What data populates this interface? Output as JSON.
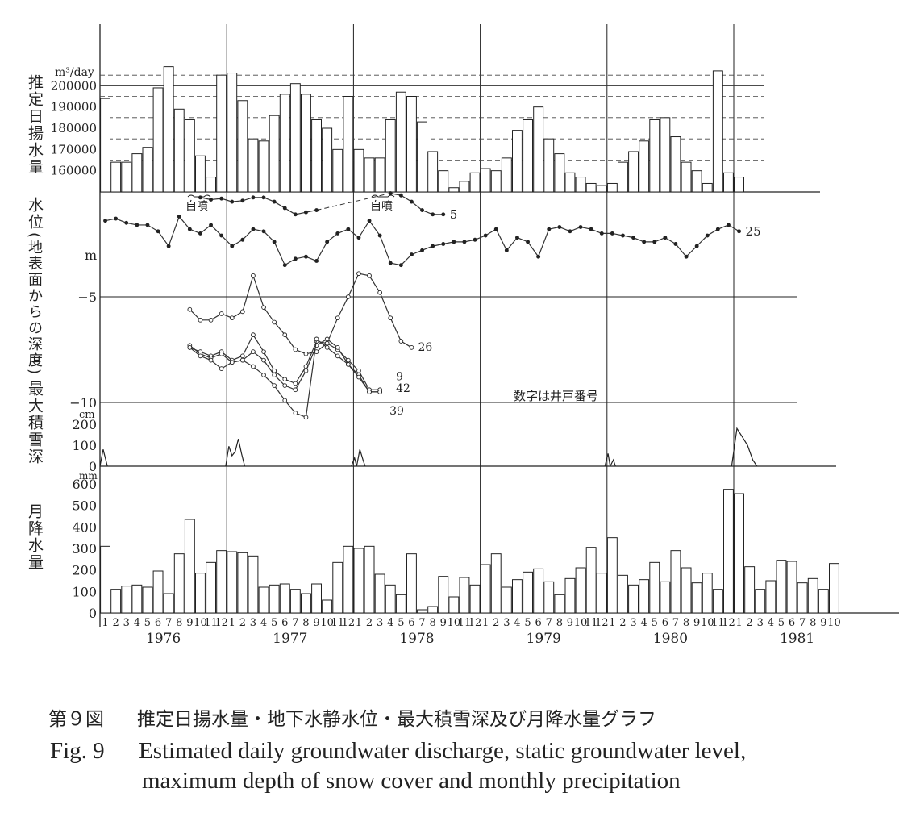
{
  "labels": {
    "discharge_label": "推定日揚水量",
    "discharge_unit": "m³/day",
    "level_label_top": "水位",
    "level_label_sub": "(地表面からの深度)",
    "level_unit": "m",
    "snow_label": "最大積雪深",
    "snow_unit": "cm",
    "precip_label": "月降水量",
    "precip_unit": "mm",
    "artesian_note": "自噴",
    "well_note": "数字は井戸番号"
  },
  "caption": {
    "jp_num": "第９図",
    "jp_text": "推定日揚水量・地下水静水位・最大積雪深及び月降水量グラフ",
    "en_num": "Fig. 9",
    "en_line1": "Estimated daily groundwater discharge, static groundwater level,",
    "en_line2": "maximum depth of snow cover and monthly precipitation"
  },
  "chart_data": [
    {
      "type": "bar",
      "title": "推定日揚水量",
      "ylabel": "m³/day",
      "ylim": [
        150000,
        210000
      ],
      "y_ticks": [
        160000,
        170000,
        180000,
        190000,
        200000
      ],
      "categories": "monthly, Jan 1976 – Mar 1981",
      "values": [
        194000,
        164000,
        164000,
        168000,
        171000,
        199000,
        209000,
        189000,
        184000,
        167000,
        157000,
        205000,
        206000,
        193000,
        175000,
        174000,
        186000,
        196000,
        201000,
        196000,
        184000,
        180000,
        170000,
        195000,
        170000,
        166000,
        166000,
        184000,
        197000,
        195000,
        183000,
        169000,
        160000,
        152000,
        155000,
        159000,
        161000,
        160000,
        166000,
        179000,
        184000,
        190000,
        175000,
        168000,
        159000,
        157000,
        154000,
        153000,
        154000,
        164000,
        169000,
        174000,
        184000,
        185000,
        176000,
        164000,
        160000,
        154000,
        207000,
        159000,
        157000
      ]
    },
    {
      "type": "line",
      "title": "水位",
      "ylabel": "m",
      "ylim": [
        -12,
        2
      ],
      "y_ticks": [
        -5,
        -10
      ],
      "series": [
        {
          "name": "5",
          "x_start": "1976-10",
          "values": [
            -0.3,
            -0.4,
            -0.35,
            -0.5,
            -0.45,
            -0.3,
            -0.3,
            -0.5,
            -0.8,
            -1.1,
            -1.0,
            -0.9,
            null,
            null,
            null,
            null,
            null,
            null,
            -0.1,
            -0.2,
            -0.5,
            -0.9,
            -1.1,
            -1.1
          ]
        },
        {
          "name": "25",
          "x_start": "1976-01",
          "values": [
            -1.4,
            -1.3,
            -1.5,
            -1.6,
            -1.6,
            -1.9,
            -2.6,
            -1.2,
            -1.8,
            -2.0,
            -1.6,
            -2.1,
            -2.6,
            -2.3,
            -1.8,
            -1.9,
            -2.4,
            -3.5,
            -3.2,
            -3.1,
            -3.3,
            -2.4,
            -2.0,
            -1.8,
            -2.2,
            -1.4,
            -2.1,
            -3.4,
            -3.5,
            -3.0,
            -2.8,
            -2.6,
            -2.5,
            -2.4,
            -2.4,
            -2.3,
            -2.1,
            -1.8,
            -2.8,
            -2.2,
            -2.4,
            -3.1,
            -1.8,
            -1.7,
            -1.9,
            -1.7,
            -1.8,
            -2.0,
            -2.0,
            -2.1,
            -2.2,
            -2.4,
            -2.4,
            -2.2,
            -2.5,
            -3.1,
            -2.6,
            -2.1,
            -1.8,
            -1.6,
            -1.9
          ]
        }
      ]
    },
    {
      "type": "line",
      "title": "水位 (wells 26, 9, 42, 39)",
      "ylabel": "m",
      "ylim": [
        -12,
        2
      ],
      "series": [
        {
          "name": "26",
          "x_start": "1976-09",
          "values": [
            -5.6,
            -6.1,
            -6.1,
            -5.8,
            -6.0,
            -5.7,
            -4.0,
            -5.5,
            -6.2,
            -6.8,
            -7.5,
            -7.7,
            -7.6,
            -7.2,
            -6.0,
            -5.0,
            -3.9,
            -4.0,
            -4.8,
            -6.0,
            -7.1,
            -7.4
          ]
        },
        {
          "name": "9",
          "x_start": "1976-09",
          "values": [
            -7.4,
            -7.6,
            -7.8,
            -7.6,
            -8.0,
            -7.8,
            -6.8,
            -7.6,
            -8.5,
            -8.9,
            -9.1,
            -8.3,
            -7.1,
            -7.2,
            -7.5,
            -8.0,
            -8.5,
            -9.4,
            -9.4
          ]
        },
        {
          "name": "42",
          "x_start": "1976-09",
          "values": [
            -7.3,
            -7.7,
            -7.9,
            -7.7,
            -8.1,
            -8.0,
            -7.6,
            -8.0,
            -8.7,
            -9.2,
            -9.4,
            -8.5,
            -7.3,
            -7.0,
            -7.4,
            -8.2,
            -8.7,
            -9.5,
            -9.5
          ]
        },
        {
          "name": "39",
          "x_start": "1976-09",
          "values": [
            -7.4,
            -7.8,
            -8.0,
            -8.4,
            -8.1,
            -8.0,
            -8.3,
            -8.7,
            -9.2,
            -9.9,
            -10.5,
            -10.7,
            -7.0,
            -7.4,
            -7.8,
            -8.2,
            -8.8,
            -9.5,
            -9.5
          ]
        }
      ]
    },
    {
      "type": "area",
      "title": "最大積雪深",
      "ylabel": "cm",
      "ylim": [
        0,
        200
      ],
      "y_ticks": [
        0,
        100,
        200
      ],
      "series": [
        {
          "name": "1976",
          "x": [
            1.0,
            1.3,
            1.7
          ],
          "values": [
            0,
            80,
            0
          ]
        },
        {
          "name": "1977",
          "x": [
            12.9,
            13.2,
            13.5,
            13.8,
            14.1,
            14.4,
            14.7
          ],
          "values": [
            0,
            95,
            50,
            70,
            130,
            60,
            0
          ]
        },
        {
          "name": "1978",
          "x": [
            24.8,
            25.1,
            25.3,
            25.6,
            25.9,
            26.1
          ],
          "values": [
            0,
            40,
            0,
            80,
            30,
            0
          ]
        },
        {
          "name": "1980",
          "x": [
            48.8,
            49.1,
            49.3,
            49.6,
            49.8
          ],
          "values": [
            0,
            60,
            0,
            30,
            0
          ]
        },
        {
          "name": "1981",
          "x": [
            60.8,
            61.3,
            61.8,
            62.3,
            62.8,
            63.2
          ],
          "values": [
            0,
            180,
            140,
            100,
            30,
            0
          ]
        }
      ]
    },
    {
      "type": "bar",
      "title": "月降水量",
      "ylabel": "mm",
      "ylim": [
        0,
        600
      ],
      "y_ticks": [
        0,
        100,
        200,
        300,
        400,
        500,
        600
      ],
      "x_months": [
        "1",
        "2",
        "3",
        "4",
        "5",
        "6",
        "7",
        "8",
        "9",
        "10",
        "11",
        "12",
        "1",
        "2",
        "3",
        "4",
        "5",
        "6",
        "7",
        "8",
        "9",
        "10",
        "11",
        "12",
        "1",
        "2",
        "3",
        "4",
        "5",
        "6",
        "7",
        "8",
        "9",
        "10",
        "11",
        "12",
        "1",
        "2",
        "3",
        "4",
        "5",
        "6",
        "7",
        "8",
        "9",
        "10",
        "11",
        "12",
        "1",
        "2",
        "3",
        "4",
        "5",
        "6",
        "7",
        "8",
        "9",
        "10",
        "11",
        "12",
        "1",
        "2",
        "3",
        "4",
        "5",
        "6",
        "7",
        "8",
        "9",
        "10"
      ],
      "x_years": [
        "1976",
        "1977",
        "1978",
        "1979",
        "1980",
        "1981"
      ],
      "values": [
        310,
        110,
        125,
        130,
        120,
        195,
        90,
        275,
        435,
        185,
        235,
        290,
        285,
        280,
        265,
        120,
        130,
        135,
        110,
        90,
        135,
        60,
        235,
        310,
        300,
        310,
        180,
        130,
        85,
        275,
        15,
        30,
        170,
        75,
        165,
        130,
        225,
        275,
        120,
        155,
        190,
        205,
        145,
        85,
        160,
        210,
        305,
        185,
        350,
        175,
        130,
        155,
        235,
        145,
        290,
        210,
        140,
        185,
        110,
        575,
        555,
        215,
        110,
        150,
        245,
        240,
        140,
        160,
        110,
        230
      ]
    }
  ]
}
